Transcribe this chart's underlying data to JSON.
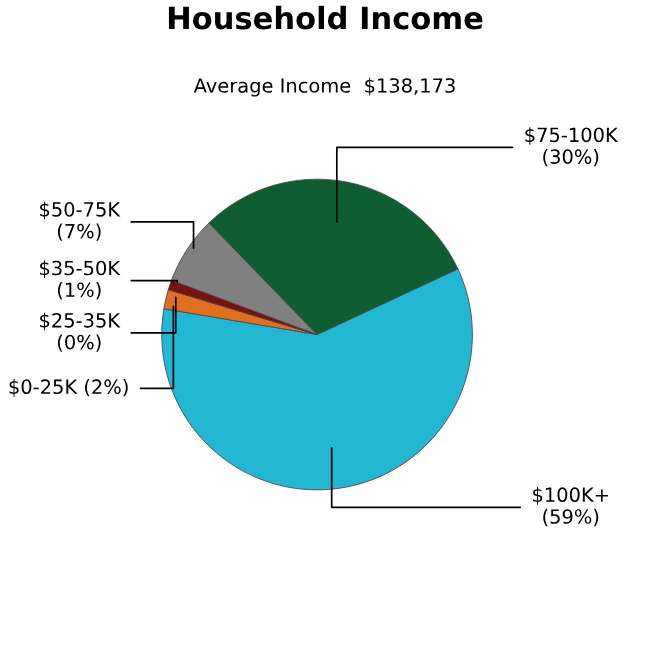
{
  "chart_data": {
    "type": "pie",
    "title": "Household Income",
    "subtitle": "Average Income  $138,173",
    "categories": [
      "$100K+",
      "$0-25K",
      "$25-35K",
      "$35-50K",
      "$50-75K",
      "$75-100K"
    ],
    "values": [
      59,
      2,
      0,
      1,
      7,
      30
    ],
    "colors": [
      "#22b8d4",
      "#e07020",
      "#e8c020",
      "#7a1010",
      "#808080",
      "#0f5e32"
    ],
    "value_labels": [
      "(59%)",
      "(2%)",
      "(0%)",
      "(1%)",
      "(7%)",
      "(30%)"
    ]
  }
}
